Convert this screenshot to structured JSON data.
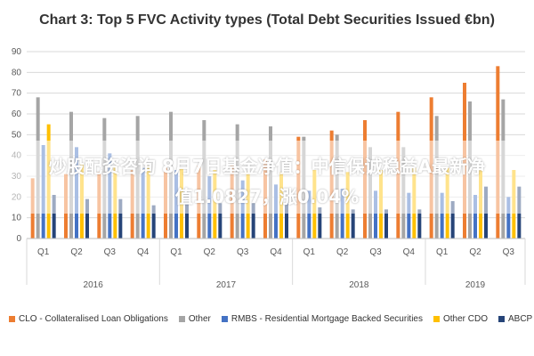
{
  "chart_data": {
    "type": "bar",
    "title": "Chart 3: Top 5 FVC Activity types (Total Debt Securities Issued €bn)",
    "categories": [
      "Q1",
      "Q2",
      "Q3",
      "Q4",
      "Q1",
      "Q2",
      "Q3",
      "Q4",
      "Q1",
      "Q2",
      "Q3",
      "Q4",
      "Q1",
      "Q2",
      "Q3"
    ],
    "year_groups": [
      {
        "label": "2016",
        "count": 4
      },
      {
        "label": "2017",
        "count": 4
      },
      {
        "label": "2018",
        "count": 4
      },
      {
        "label": "2019",
        "count": 3
      }
    ],
    "ylim": [
      0,
      90
    ],
    "yticks": [
      "0",
      "10",
      "20",
      "30",
      "40",
      "50",
      "60",
      "70",
      "80",
      "90"
    ],
    "series": [
      {
        "name": "CLO - Collateralised Loan Obligations",
        "color": "#ED7D31",
        "values": [
          29,
          31,
          32,
          33,
          34,
          35,
          36,
          38,
          49,
          52,
          57,
          61,
          68,
          75,
          83
        ]
      },
      {
        "name": "Other",
        "color": "#A5A5A5",
        "values": [
          68,
          61,
          58,
          59,
          61,
          57,
          55,
          54,
          49,
          50,
          44,
          44,
          59,
          66,
          67
        ]
      },
      {
        "name": "RMBS - Residential Mortgage Backed Securities",
        "color": "#4472C4",
        "values": [
          45,
          44,
          41,
          34,
          33,
          30,
          28,
          26,
          23,
          24,
          23,
          22,
          22,
          21,
          20
        ]
      },
      {
        "name": "Other CDO",
        "color": "#FFC000",
        "values": [
          55,
          36,
          35,
          35,
          34,
          33,
          32,
          32,
          33,
          32,
          33,
          34,
          34,
          33,
          33
        ]
      },
      {
        "name": "ABCP",
        "color": "#264478",
        "values": [
          21,
          19,
          19,
          16,
          17,
          17,
          17,
          17,
          15,
          14,
          14,
          14,
          18,
          25,
          25
        ]
      }
    ],
    "grid": true,
    "legend": "bottom"
  },
  "overlay": {
    "line1": "炒股配资咨询 8月7日基金净值：中信保诚稳益A最新净",
    "line2": "值1.0827，涨0.04%"
  }
}
